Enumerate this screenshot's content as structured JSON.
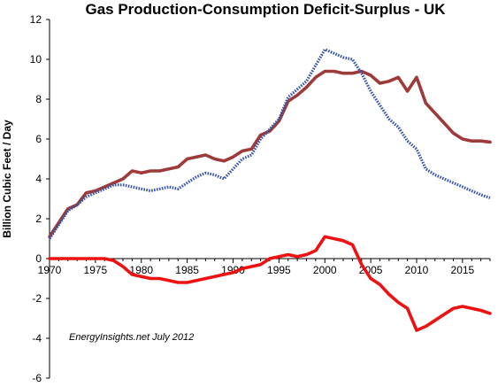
{
  "chart_data": {
    "type": "line",
    "title": "Gas Production-Consumption  Deficit-Surplus - UK",
    "ylabel": "Billion Cubic Feet / Day",
    "xlabel": "",
    "xlim": [
      1970,
      2018
    ],
    "ylim": [
      -6,
      12
    ],
    "x_ticks": [
      "1970",
      "1975",
      "1980",
      "1985",
      "1990",
      "1995",
      "2000",
      "2005",
      "2010",
      "2015"
    ],
    "y_ticks": [
      "12",
      "10",
      "8",
      "6",
      "4",
      "2",
      "0",
      "-2",
      "-4",
      "-6"
    ],
    "grid": false,
    "legend": "none",
    "annotation": "EnergyInsights.net July 2012",
    "x": [
      1970,
      1971,
      1972,
      1973,
      1974,
      1975,
      1976,
      1977,
      1978,
      1979,
      1980,
      1981,
      1982,
      1983,
      1984,
      1985,
      1986,
      1987,
      1988,
      1989,
      1990,
      1991,
      1992,
      1993,
      1994,
      1995,
      1996,
      1997,
      1998,
      1999,
      2000,
      2001,
      2002,
      2003,
      2004,
      2005,
      2006,
      2007,
      2008,
      2009,
      2010,
      2011,
      2012,
      2013,
      2014,
      2015,
      2016,
      2017,
      2018
    ],
    "series": [
      {
        "color": "#9e3a3a",
        "style": "solid-thick",
        "values": [
          1.1,
          1.8,
          2.5,
          2.7,
          3.3,
          3.4,
          3.6,
          3.8,
          4.0,
          4.4,
          4.3,
          4.4,
          4.4,
          4.5,
          4.6,
          5.0,
          5.1,
          5.2,
          5.0,
          4.9,
          5.1,
          5.4,
          5.5,
          6.2,
          6.4,
          6.9,
          7.9,
          8.2,
          8.6,
          9.1,
          9.4,
          9.4,
          9.3,
          9.3,
          9.4,
          9.2,
          8.8,
          8.9,
          9.1,
          8.4,
          9.1,
          7.8,
          7.3,
          6.8,
          6.3,
          6.0,
          5.9,
          5.9,
          5.85
        ]
      },
      {
        "color": "#3355aa",
        "style": "dotted",
        "values": [
          1.0,
          1.7,
          2.4,
          2.7,
          3.1,
          3.3,
          3.5,
          3.7,
          3.7,
          3.6,
          3.5,
          3.4,
          3.5,
          3.6,
          3.5,
          3.8,
          4.1,
          4.3,
          4.2,
          4.0,
          4.5,
          5.0,
          5.2,
          6.0,
          6.5,
          7.0,
          8.1,
          8.5,
          8.9,
          9.7,
          10.5,
          10.3,
          10.1,
          10.0,
          9.3,
          8.4,
          7.7,
          7.0,
          6.6,
          5.9,
          5.5,
          4.5,
          4.2,
          4.0,
          3.8,
          3.6,
          3.4,
          3.2,
          3.05
        ]
      },
      {
        "color": "#ee1111",
        "style": "solid-thick",
        "values": [
          0.0,
          0.0,
          0.0,
          0.0,
          0.0,
          0.0,
          0.0,
          -0.1,
          -0.4,
          -0.8,
          -0.9,
          -1.0,
          -1.0,
          -1.1,
          -1.2,
          -1.2,
          -1.1,
          -1.0,
          -0.9,
          -0.8,
          -0.7,
          -0.5,
          -0.4,
          -0.3,
          0.0,
          0.1,
          0.2,
          0.1,
          0.2,
          0.4,
          1.1,
          1.0,
          0.9,
          0.7,
          -0.3,
          -1.0,
          -1.3,
          -1.8,
          -2.2,
          -2.5,
          -3.6,
          -3.4,
          -3.1,
          -2.8,
          -2.5,
          -2.4,
          -2.5,
          -2.6,
          -2.75
        ]
      }
    ]
  }
}
